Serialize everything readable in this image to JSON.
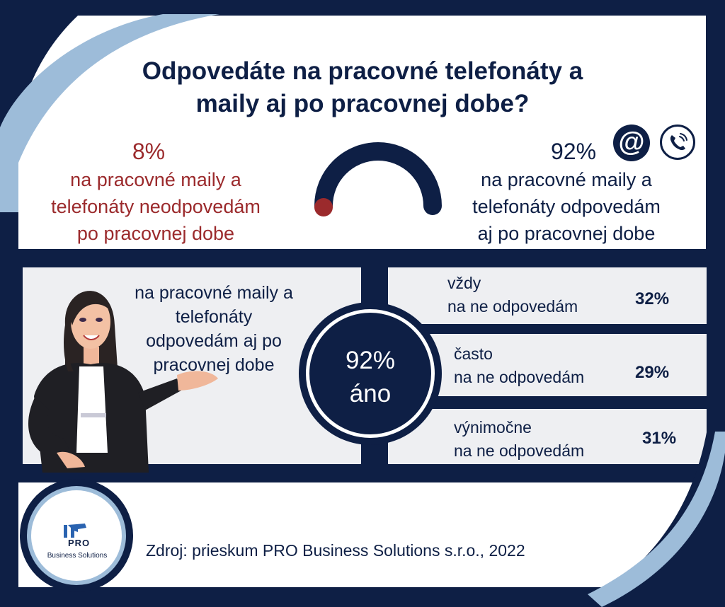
{
  "title": "Odpovedáte na pracovné telefonáty a\nmaily aj po pracovnej dobe?",
  "left_stat": {
    "percent": "8%",
    "text": "na pracovné maily a\ntelefonáty neodpovedám\npo pracovnej dobe",
    "value": 8,
    "color": "#9b2a2c"
  },
  "right_stat": {
    "percent": "92%",
    "text": "na pracovné maily a\ntelefonáty odpovedám\naj po pracovnej dobe",
    "value": 92,
    "color": "#0e1f45"
  },
  "icons": {
    "at": "@",
    "at_icon": "at-sign-icon",
    "phone_icon": "phone-icon"
  },
  "woman_caption": "na pracovné maily a\ntelefonáty\nodpovedám aj po\npracovnej dobe",
  "center": {
    "percent": "92%",
    "label": "áno"
  },
  "breakdown": [
    {
      "label": "vždy\nna ne odpovedám",
      "percent": "32%"
    },
    {
      "label": "často\nna ne odpovedám",
      "percent": "29%"
    },
    {
      "label": "výnimočne\nna ne odpovedám",
      "percent": "31%"
    }
  ],
  "source": "Zdroj: prieskum PRO Business Solutions s.r.o., 2022",
  "logo": {
    "line1": "PRO",
    "line2": "Business Solutions"
  },
  "colors": {
    "navy": "#0e1f45",
    "red": "#9b2a2c",
    "light_blue": "#9dbcd9",
    "panel_gray": "#eeeff2",
    "white": "#ffffff"
  }
}
